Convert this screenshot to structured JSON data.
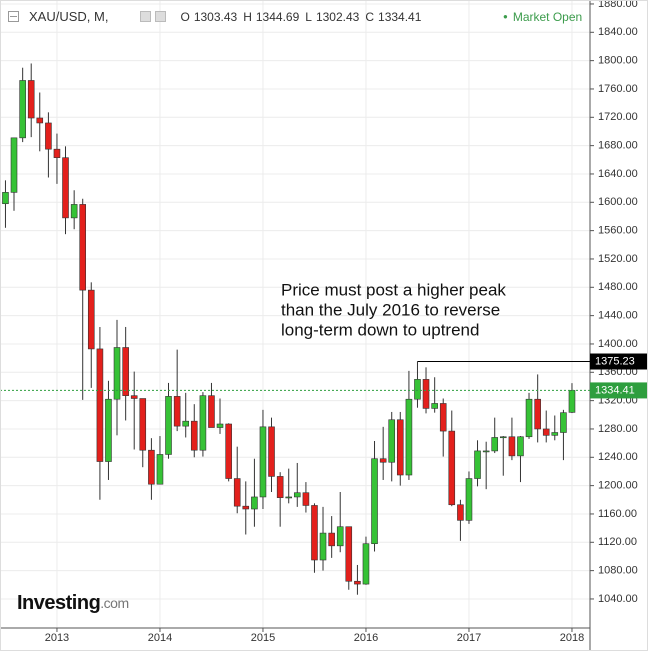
{
  "chart_data": {
    "type": "candlestick",
    "symbol": "XAU/USD, M,",
    "header_ohlc": [
      {
        "label": "O",
        "value": 1303.43
      },
      {
        "label": "H",
        "value": 1344.69
      },
      {
        "label": "L",
        "value": 1302.43
      },
      {
        "label": "C",
        "value": 1334.41
      }
    ],
    "status": "Market Open",
    "annotation": [
      "Price must post a higher peak",
      "than the July 2016 to reverse",
      "long-term down to uptrend"
    ],
    "watermark": [
      "Investing",
      ".com"
    ],
    "up_color": "#36c236",
    "down_color": "#e3201c",
    "x": [
      2012.5,
      2012.583,
      2012.667,
      2012.75,
      2012.833,
      2012.917,
      2013,
      2013.083,
      2013.167,
      2013.25,
      2013.333,
      2013.417,
      2013.5,
      2013.583,
      2013.667,
      2013.75,
      2013.833,
      2013.917,
      2014,
      2014.083,
      2014.167,
      2014.25,
      2014.333,
      2014.417,
      2014.5,
      2014.583,
      2014.667,
      2014.75,
      2014.833,
      2014.917,
      2015,
      2015.083,
      2015.167,
      2015.25,
      2015.333,
      2015.417,
      2015.5,
      2015.583,
      2015.667,
      2015.75,
      2015.833,
      2015.917,
      2016,
      2016.083,
      2016.167,
      2016.25,
      2016.333,
      2016.417,
      2016.5,
      2016.583,
      2016.667,
      2016.75,
      2016.833,
      2016.917,
      2017,
      2017.083,
      2017.167,
      2017.25,
      2017.333,
      2017.417,
      2017.5,
      2017.583,
      2017.667,
      2017.75,
      2017.833,
      2017.917,
      2018
    ],
    "open": [
      1598,
      1614,
      1691,
      1772,
      1719,
      1712,
      1675,
      1663,
      1578,
      1597,
      1476,
      1393,
      1234,
      1322,
      1395,
      1327,
      1323,
      1250,
      1202,
      1244,
      1326,
      1284,
      1291,
      1250,
      1327,
      1282,
      1287,
      1210,
      1171,
      1167,
      1184,
      1283,
      1213,
      1183,
      1184,
      1190,
      1172,
      1095,
      1133,
      1115,
      1142,
      1065,
      1061,
      1118,
      1238,
      1233,
      1293,
      1215,
      1322,
      1350,
      1309,
      1316,
      1277,
      1173,
      1151,
      1210,
      1249,
      1249,
      1268,
      1269,
      1242,
      1269,
      1322,
      1280,
      1271,
      1275,
      1303.43
    ],
    "high": [
      1631,
      1691,
      1790,
      1796,
      1755,
      1727,
      1697,
      1679,
      1617,
      1605,
      1487,
      1424,
      1348,
      1434,
      1424,
      1361,
      1323,
      1267,
      1270,
      1345,
      1392,
      1331,
      1315,
      1332,
      1345,
      1323,
      1288,
      1255,
      1206,
      1238,
      1307,
      1296,
      1219,
      1224,
      1232,
      1205,
      1175,
      1170,
      1157,
      1191,
      1142,
      1088,
      1128,
      1263,
      1283,
      1304,
      1304,
      1362,
      1375.23,
      1367,
      1353,
      1323,
      1306,
      1180,
      1220,
      1264,
      1262,
      1296,
      1270,
      1296,
      1270,
      1331,
      1357,
      1306,
      1299,
      1307,
      1344.69
    ],
    "low": [
      1564,
      1588,
      1685,
      1692,
      1672,
      1635,
      1626,
      1555,
      1562,
      1321,
      1338,
      1180,
      1208,
      1271,
      1292,
      1251,
      1226,
      1180,
      1202,
      1238,
      1277,
      1268,
      1240,
      1241,
      1285,
      1273,
      1206,
      1161,
      1131,
      1142,
      1167,
      1191,
      1142,
      1175,
      1170,
      1162,
      1077,
      1080,
      1098,
      1106,
      1053,
      1046,
      1060,
      1107,
      1208,
      1206,
      1200,
      1208,
      1310,
      1302,
      1303,
      1241,
      1171,
      1122,
      1146,
      1199,
      1195,
      1246,
      1214,
      1236,
      1205,
      1266,
      1261,
      1261,
      1264,
      1236,
      1302.43
    ],
    "close": [
      1614,
      1691,
      1772,
      1719,
      1712,
      1675,
      1663,
      1578,
      1597,
      1476,
      1393,
      1234,
      1322,
      1395,
      1327,
      1323,
      1250,
      1202,
      1244,
      1326,
      1284,
      1291,
      1250,
      1327,
      1282,
      1287,
      1210,
      1171,
      1167,
      1184,
      1283,
      1213,
      1183,
      1184,
      1190,
      1172,
      1095,
      1133,
      1115,
      1142,
      1065,
      1061,
      1118,
      1238,
      1233,
      1293,
      1215,
      1322,
      1350,
      1309,
      1316,
      1277,
      1173,
      1151,
      1210,
      1249,
      1249,
      1268,
      1269,
      1242,
      1269,
      1322,
      1280,
      1271,
      1275,
      1303,
      1334.41
    ],
    "price_lines": [
      {
        "value": 1375.23,
        "color": "#000000",
        "from": 2016.5
      },
      {
        "value": 1334.41,
        "color": "#2e9e3e"
      }
    ],
    "xlim": [
      2012.447,
      2018.175
    ],
    "xticks": [
      2013,
      2014,
      2015,
      2016,
      2017,
      2018
    ],
    "ylim": [
      999,
      1885.6
    ],
    "yticks": [
      {
        "value": 1040,
        "label": "1040.00"
      },
      {
        "value": 1080,
        "label": "1080.00"
      },
      {
        "value": 1120,
        "label": "1120.00"
      },
      {
        "value": 1160,
        "label": "1160.00"
      },
      {
        "value": 1200,
        "label": "1200.00"
      },
      {
        "value": 1240,
        "label": "1240.00"
      },
      {
        "value": 1280,
        "label": "1280.00"
      },
      {
        "value": 1320,
        "label": "1320.00"
      },
      {
        "value": 1360,
        "label": "1360.00"
      },
      {
        "value": 1400,
        "label": "1400.00"
      },
      {
        "value": 1440,
        "label": "1440.00"
      },
      {
        "value": 1480,
        "label": "1480.00"
      },
      {
        "value": 1520,
        "label": "1520.00"
      },
      {
        "value": 1560,
        "label": "1560.00"
      },
      {
        "value": 1600,
        "label": "1600.00"
      },
      {
        "value": 1640,
        "label": "1640.00"
      },
      {
        "value": 1680,
        "label": "1680.00"
      },
      {
        "value": 1720,
        "label": "1720.00"
      },
      {
        "value": 1760,
        "label": "1760.00"
      },
      {
        "value": 1800,
        "label": "1800.00"
      },
      {
        "value": 1840,
        "label": "1840.00"
      },
      {
        "value": 1880,
        "label": "1880.00"
      }
    ],
    "grid": true
  }
}
